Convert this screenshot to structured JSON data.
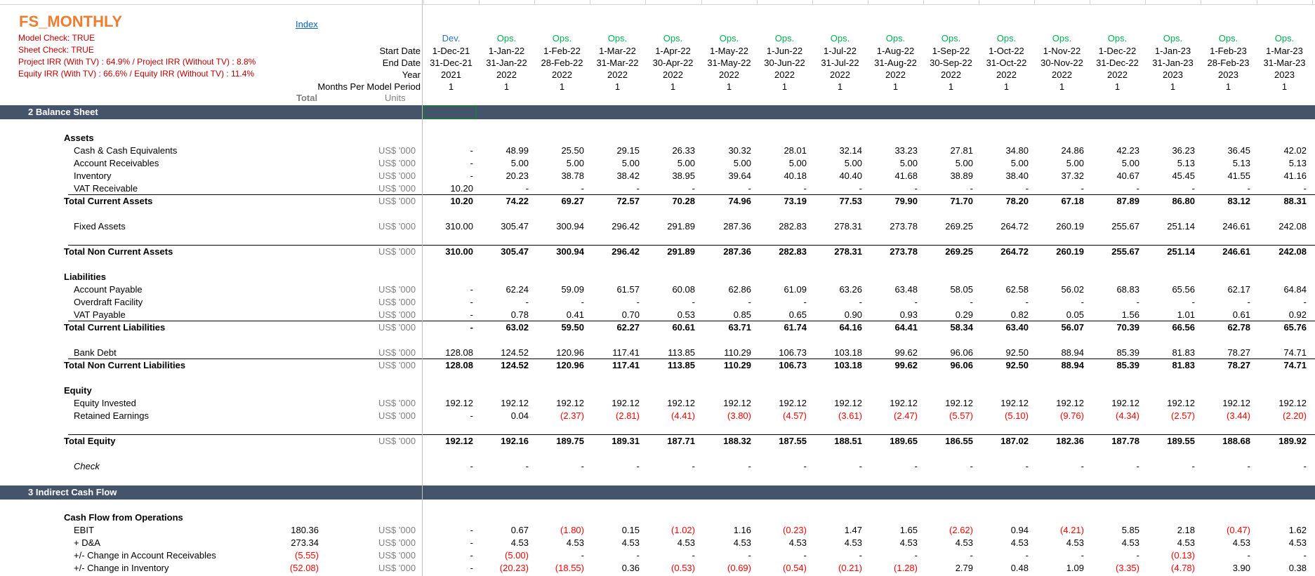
{
  "sheet": {
    "title": "FS_MONTHLY",
    "index_link": "Index",
    "checks": [
      "Model Check: TRUE",
      "Sheet Check: TRUE",
      "Project IRR  (With TV) : 64.9%  / Project IRR (Without TV) : 8.8%",
      "Equity IRR  (With TV) : 66.6% / Equity IRR (Without TV) : 11.4%"
    ]
  },
  "header": {
    "labels": {
      "start_date": "Start Date",
      "end_date": "End Date",
      "year": "Year",
      "months": "Months Per Model Period",
      "total": "Total",
      "units": "Units"
    },
    "periods": [
      {
        "type": "Dev.",
        "start": "1-Dec-21",
        "end": "31-Dec-21",
        "year": "2021",
        "months": "1"
      },
      {
        "type": "Ops.",
        "start": "1-Jan-22",
        "end": "31-Jan-22",
        "year": "2022",
        "months": "1"
      },
      {
        "type": "Ops.",
        "start": "1-Feb-22",
        "end": "28-Feb-22",
        "year": "2022",
        "months": "1"
      },
      {
        "type": "Ops.",
        "start": "1-Mar-22",
        "end": "31-Mar-22",
        "year": "2022",
        "months": "1"
      },
      {
        "type": "Ops.",
        "start": "1-Apr-22",
        "end": "30-Apr-22",
        "year": "2022",
        "months": "1"
      },
      {
        "type": "Ops.",
        "start": "1-May-22",
        "end": "31-May-22",
        "year": "2022",
        "months": "1"
      },
      {
        "type": "Ops.",
        "start": "1-Jun-22",
        "end": "30-Jun-22",
        "year": "2022",
        "months": "1"
      },
      {
        "type": "Ops.",
        "start": "1-Jul-22",
        "end": "31-Jul-22",
        "year": "2022",
        "months": "1"
      },
      {
        "type": "Ops.",
        "start": "1-Aug-22",
        "end": "31-Aug-22",
        "year": "2022",
        "months": "1"
      },
      {
        "type": "Ops.",
        "start": "1-Sep-22",
        "end": "30-Sep-22",
        "year": "2022",
        "months": "1"
      },
      {
        "type": "Ops.",
        "start": "1-Oct-22",
        "end": "31-Oct-22",
        "year": "2022",
        "months": "1"
      },
      {
        "type": "Ops.",
        "start": "1-Nov-22",
        "end": "30-Nov-22",
        "year": "2022",
        "months": "1"
      },
      {
        "type": "Ops.",
        "start": "1-Dec-22",
        "end": "31-Dec-22",
        "year": "2022",
        "months": "1"
      },
      {
        "type": "Ops.",
        "start": "1-Jan-23",
        "end": "31-Jan-23",
        "year": "2023",
        "months": "1"
      },
      {
        "type": "Ops.",
        "start": "1-Feb-23",
        "end": "28-Feb-23",
        "year": "2023",
        "months": "1"
      },
      {
        "type": "Ops.",
        "start": "1-Mar-23",
        "end": "31-Mar-23",
        "year": "2023",
        "months": "1"
      }
    ]
  },
  "sections": {
    "balance_sheet": "2  Balance Sheet",
    "indirect_cash_flow": "3  Indirect Cash Flow"
  },
  "rows": [
    {
      "label": "Assets",
      "style": "heading",
      "indent": 1
    },
    {
      "label": "Cash & Cash Equivalents",
      "indent": 2,
      "unit": "US$ '000",
      "values": [
        "-",
        "48.99",
        "25.50",
        "29.15",
        "26.33",
        "30.32",
        "28.01",
        "32.14",
        "33.23",
        "27.81",
        "34.80",
        "24.86",
        "42.23",
        "36.23",
        "36.45",
        "42.02"
      ]
    },
    {
      "label": "Account Receivables",
      "indent": 2,
      "unit": "US$ '000",
      "values": [
        "-",
        "5.00",
        "5.00",
        "5.00",
        "5.00",
        "5.00",
        "5.00",
        "5.00",
        "5.00",
        "5.00",
        "5.00",
        "5.00",
        "5.00",
        "5.13",
        "5.13",
        "5.13"
      ]
    },
    {
      "label": "Inventory",
      "indent": 2,
      "unit": "US$ '000",
      "values": [
        "-",
        "20.23",
        "38.78",
        "38.42",
        "38.95",
        "39.64",
        "40.18",
        "40.40",
        "41.68",
        "38.89",
        "38.40",
        "37.32",
        "40.67",
        "45.45",
        "41.55",
        "41.16"
      ]
    },
    {
      "label": "VAT Receivable",
      "indent": 2,
      "unit": "US$ '000",
      "values": [
        "10.20",
        "-",
        "-",
        "-",
        "-",
        "-",
        "-",
        "-",
        "-",
        "-",
        "-",
        "-",
        "-",
        "-",
        "-",
        "-"
      ]
    },
    {
      "label": "Total Current Assets",
      "style": "total",
      "indent": 1,
      "rule": true,
      "unit": "US$ '000",
      "values": [
        "10.20",
        "74.22",
        "69.27",
        "72.57",
        "70.28",
        "74.96",
        "73.19",
        "77.53",
        "79.90",
        "71.70",
        "78.20",
        "67.18",
        "87.89",
        "86.80",
        "83.12",
        "88.31"
      ]
    },
    {
      "label": "Fixed Assets",
      "indent": 2,
      "unit": "US$ '000",
      "values": [
        "310.00",
        "305.47",
        "300.94",
        "296.42",
        "291.89",
        "287.36",
        "282.83",
        "278.31",
        "273.78",
        "269.25",
        "264.72",
        "260.19",
        "255.67",
        "251.14",
        "246.61",
        "242.08"
      ]
    },
    {
      "label": "Total Non Current Assets",
      "style": "total",
      "indent": 1,
      "rule": true,
      "unit": "US$ '000",
      "values": [
        "310.00",
        "305.47",
        "300.94",
        "296.42",
        "291.89",
        "287.36",
        "282.83",
        "278.31",
        "273.78",
        "269.25",
        "264.72",
        "260.19",
        "255.67",
        "251.14",
        "246.61",
        "242.08"
      ]
    },
    {
      "label": "Liabilities",
      "style": "heading",
      "indent": 1
    },
    {
      "label": "Account Payable",
      "indent": 2,
      "unit": "US$ '000",
      "values": [
        "-",
        "62.24",
        "59.09",
        "61.57",
        "60.08",
        "62.86",
        "61.09",
        "63.26",
        "63.48",
        "58.05",
        "62.58",
        "56.02",
        "68.83",
        "65.56",
        "62.17",
        "64.84"
      ]
    },
    {
      "label": "Overdraft Facility",
      "indent": 2,
      "unit": "US$ '000",
      "values": [
        "-",
        "-",
        "-",
        "-",
        "-",
        "-",
        "-",
        "-",
        "-",
        "-",
        "-",
        "-",
        "-",
        "-",
        "-",
        "-"
      ]
    },
    {
      "label": "VAT Payable",
      "indent": 2,
      "unit": "US$ '000",
      "values": [
        "-",
        "0.78",
        "0.41",
        "0.70",
        "0.53",
        "0.85",
        "0.65",
        "0.90",
        "0.93",
        "0.29",
        "0.82",
        "0.05",
        "1.56",
        "1.01",
        "0.61",
        "0.92"
      ]
    },
    {
      "label": "Total Current Liabilities",
      "style": "total",
      "indent": 1,
      "rule": true,
      "unit": "US$ '000",
      "values": [
        "-",
        "63.02",
        "59.50",
        "62.27",
        "60.61",
        "63.71",
        "61.74",
        "64.16",
        "64.41",
        "58.34",
        "63.40",
        "56.07",
        "70.39",
        "66.56",
        "62.78",
        "65.76"
      ]
    },
    {
      "label": "Bank Debt",
      "indent": 2,
      "unit": "US$ '000",
      "values": [
        "128.08",
        "124.52",
        "120.96",
        "117.41",
        "113.85",
        "110.29",
        "106.73",
        "103.18",
        "99.62",
        "96.06",
        "92.50",
        "88.94",
        "85.39",
        "81.83",
        "78.27",
        "74.71"
      ]
    },
    {
      "label": "Total Non Current Liabilities",
      "style": "total",
      "indent": 1,
      "rule": true,
      "unit": "US$ '000",
      "values": [
        "128.08",
        "124.52",
        "120.96",
        "117.41",
        "113.85",
        "110.29",
        "106.73",
        "103.18",
        "99.62",
        "96.06",
        "92.50",
        "88.94",
        "85.39",
        "81.83",
        "78.27",
        "74.71"
      ]
    },
    {
      "label": "Equity",
      "style": "heading",
      "indent": 1
    },
    {
      "label": "Equity Invested",
      "indent": 2,
      "unit": "US$ '000",
      "values": [
        "192.12",
        "192.12",
        "192.12",
        "192.12",
        "192.12",
        "192.12",
        "192.12",
        "192.12",
        "192.12",
        "192.12",
        "192.12",
        "192.12",
        "192.12",
        "192.12",
        "192.12",
        "192.12"
      ]
    },
    {
      "label": "Retained Earnings",
      "indent": 2,
      "unit": "US$ '000",
      "values": [
        "-",
        "0.04",
        "(2.37)",
        "(2.81)",
        "(4.41)",
        "(3.80)",
        "(4.57)",
        "(3.61)",
        "(2.47)",
        "(5.57)",
        "(5.10)",
        "(9.76)",
        "(4.34)",
        "(2.57)",
        "(3.44)",
        "(2.20)"
      ]
    },
    {
      "label": "Total Equity",
      "style": "total",
      "indent": 1,
      "rule": true,
      "unit": "US$ '000",
      "values": [
        "192.12",
        "192.16",
        "189.75",
        "189.31",
        "187.71",
        "188.32",
        "187.55",
        "188.51",
        "189.65",
        "186.55",
        "187.02",
        "182.36",
        "187.78",
        "189.55",
        "188.68",
        "189.92"
      ]
    },
    {
      "label": "Check",
      "style": "check",
      "indent": 2,
      "values": [
        "-",
        "-",
        "-",
        "-",
        "-",
        "-",
        "-",
        "-",
        "-",
        "-",
        "-",
        "-",
        "-",
        "-",
        "-",
        "-"
      ]
    },
    {
      "label": "Cash Flow from Operations",
      "style": "heading",
      "indent": 1
    },
    {
      "label": "EBIT",
      "indent": 2,
      "total": "180.36",
      "unit": "US$ '000",
      "values": [
        "-",
        "0.67",
        "(1.80)",
        "0.15",
        "(1.02)",
        "1.16",
        "(0.23)",
        "1.47",
        "1.65",
        "(2.62)",
        "0.94",
        "(4.21)",
        "5.85",
        "2.18",
        "(0.47)",
        "1.62"
      ]
    },
    {
      "label": "+ D&A",
      "indent": 2,
      "total": "273.34",
      "unit": "US$ '000",
      "values": [
        "-",
        "4.53",
        "4.53",
        "4.53",
        "4.53",
        "4.53",
        "4.53",
        "4.53",
        "4.53",
        "4.53",
        "4.53",
        "4.53",
        "4.53",
        "4.53",
        "4.53",
        "4.53"
      ]
    },
    {
      "label": "+/- Change in Account Receivables",
      "indent": 2,
      "total": "(5.55)",
      "unit": "US$ '000",
      "values": [
        "-",
        "(5.00)",
        "-",
        "-",
        "-",
        "-",
        "-",
        "-",
        "-",
        "-",
        "-",
        "-",
        "-",
        "(0.13)",
        "-",
        "-"
      ]
    },
    {
      "label": "+/- Change in Inventory",
      "indent": 2,
      "total": "(52.08)",
      "unit": "US$ '000",
      "values": [
        "-",
        "(20.23)",
        "(18.55)",
        "0.36",
        "(0.53)",
        "(0.69)",
        "(0.54)",
        "(0.21)",
        "(1.28)",
        "2.79",
        "0.48",
        "1.09",
        "(3.35)",
        "(4.78)",
        "3.90",
        "0.38"
      ]
    }
  ]
}
